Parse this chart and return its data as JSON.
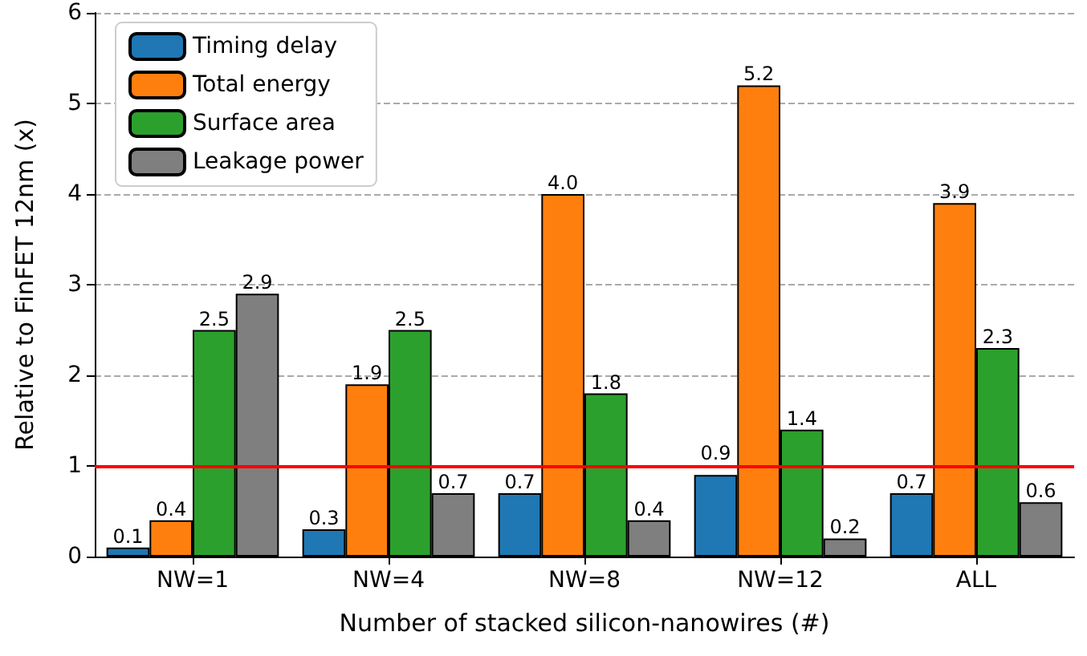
{
  "chart_data": {
    "type": "bar",
    "xlabel": "Number of stacked silicon-nanowires (#)",
    "ylabel": "Relative to FinFET 12nm (x)",
    "categories": [
      "NW=1",
      "NW=4",
      "NW=8",
      "NW=12",
      "ALL"
    ],
    "series": [
      {
        "name": "Timing delay",
        "color": "#1f77b4",
        "values": [
          0.1,
          0.3,
          0.7,
          0.9,
          0.7
        ]
      },
      {
        "name": "Total energy",
        "color": "#ff7f0e",
        "values": [
          0.4,
          1.9,
          4.0,
          5.2,
          3.9
        ]
      },
      {
        "name": "Surface area",
        "color": "#2ca02c",
        "values": [
          2.5,
          2.5,
          1.8,
          1.4,
          2.3
        ]
      },
      {
        "name": "Leakage power",
        "color": "#7f7f7f",
        "values": [
          2.9,
          0.7,
          0.4,
          0.2,
          0.6
        ]
      }
    ],
    "value_labels": [
      [
        "0.1",
        "0.3",
        "0.7",
        "0.9",
        "0.7"
      ],
      [
        "0.4",
        "1.9",
        "4.0",
        "5.2",
        "3.9"
      ],
      [
        "2.5",
        "2.5",
        "1.8",
        "1.4",
        "2.3"
      ],
      [
        "2.9",
        "0.7",
        "0.4",
        "0.2",
        "0.6"
      ]
    ],
    "ylim": [
      0,
      6
    ],
    "yticks": [
      0,
      1,
      2,
      3,
      4,
      5,
      6
    ],
    "grid": "y",
    "legend": "top left",
    "ref_lines": [
      {
        "axis": "y",
        "value": 1,
        "color": "#ff0000",
        "line_style": "solid"
      }
    ]
  }
}
